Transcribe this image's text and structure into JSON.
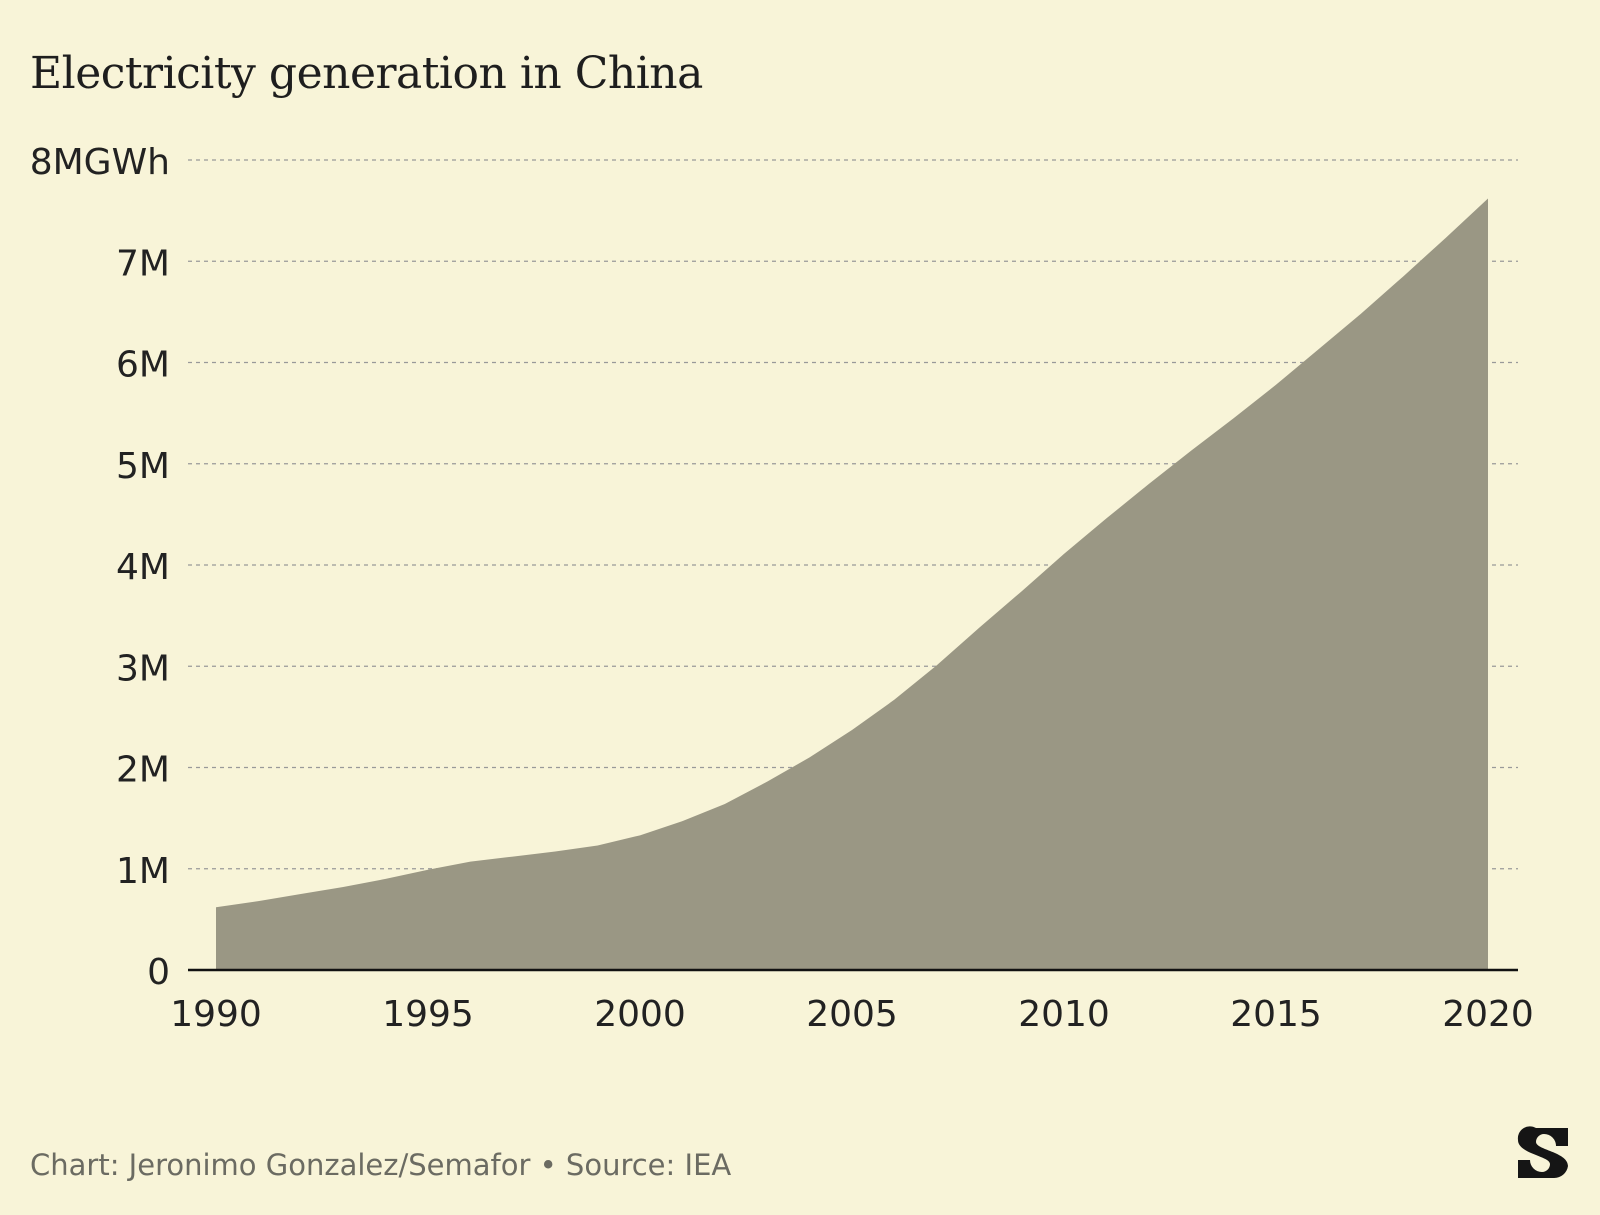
{
  "title": "Electricity generation in China",
  "footer": {
    "text": "Chart: Jeronimo Gonzalez/Semafor • Source: IEA"
  },
  "logo": {
    "icon": "semafor-s-logo",
    "color": "#151515"
  },
  "colors": {
    "area": "#9a9784",
    "grid": "#999999",
    "axis": "#111111",
    "text": "#222222"
  },
  "chart_data": {
    "type": "area",
    "title": "Electricity generation in China",
    "xlabel": "",
    "ylabel": "",
    "xlim": [
      1990,
      2020
    ],
    "ylim": [
      0,
      8000000
    ],
    "x_ticks": [
      1990,
      1995,
      2000,
      2005,
      2010,
      2015,
      2020
    ],
    "x_tick_labels": [
      "1990",
      "1995",
      "2000",
      "2005",
      "2010",
      "2015",
      "2020"
    ],
    "y_ticks": [
      0,
      1000000,
      2000000,
      3000000,
      4000000,
      5000000,
      6000000,
      7000000,
      8000000
    ],
    "y_tick_labels": [
      "0",
      "1M",
      "2M",
      "3M",
      "4M",
      "5M",
      "6M",
      "7M",
      "8MGWh"
    ],
    "grid": "horizontal dashed",
    "legend": "none",
    "series": [
      {
        "x": [
          1990,
          1991,
          1992,
          1993,
          1994,
          1995,
          1996,
          1997,
          1998,
          1999,
          2000,
          2001,
          2002,
          2003,
          2004,
          2005,
          2006,
          2007,
          2008,
          2009,
          2010,
          2011,
          2012,
          2013,
          2014,
          2015,
          2016,
          2017,
          2018,
          2019,
          2020
        ],
        "values": [
          620000,
          680000,
          750000,
          820000,
          900000,
          990000,
          1070000,
          1120000,
          1170000,
          1230000,
          1330000,
          1470000,
          1640000,
          1860000,
          2100000,
          2370000,
          2670000,
          3010000,
          3380000,
          3740000,
          4110000,
          4460000,
          4800000,
          5130000,
          5450000,
          5780000,
          6130000,
          6480000,
          6850000,
          7230000,
          7620000
        ]
      }
    ]
  }
}
